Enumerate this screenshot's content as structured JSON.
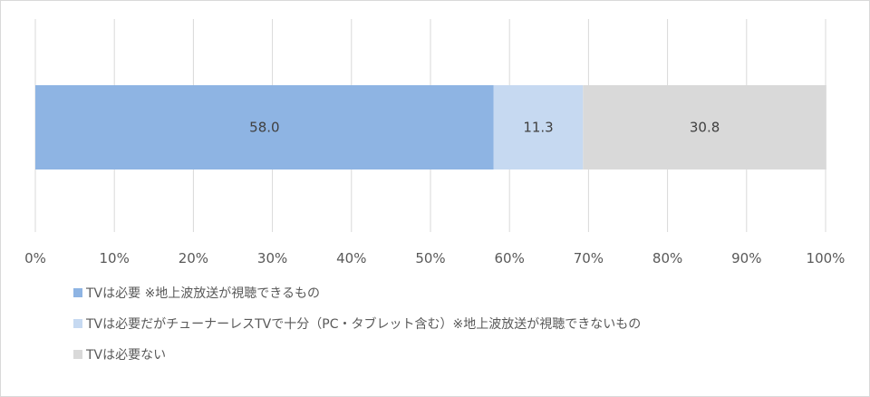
{
  "chart_data": {
    "type": "bar",
    "orientation": "horizontal",
    "stacked": true,
    "categories": [
      ""
    ],
    "series": [
      {
        "name": "TVは必要 ※地上波放送が視聴できるもの",
        "values": [
          58.0
        ],
        "color": "#8eb4e3",
        "label": "58.0"
      },
      {
        "name": "TVは必要だがチューナーレスTVで十分（PC・タブレット含む）※地上波放送が視聴できないもの",
        "values": [
          11.3
        ],
        "color": "#c6d9f1",
        "label": "11.3"
      },
      {
        "name": "TVは必要ない",
        "values": [
          30.8
        ],
        "color": "#d9d9d9",
        "label": "30.8"
      }
    ],
    "xticks": [
      "0%",
      "10%",
      "20%",
      "30%",
      "40%",
      "50%",
      "60%",
      "70%",
      "80%",
      "90%",
      "100%"
    ],
    "xlim": [
      0,
      100
    ],
    "grid": true,
    "legend_position": "bottom-left"
  }
}
